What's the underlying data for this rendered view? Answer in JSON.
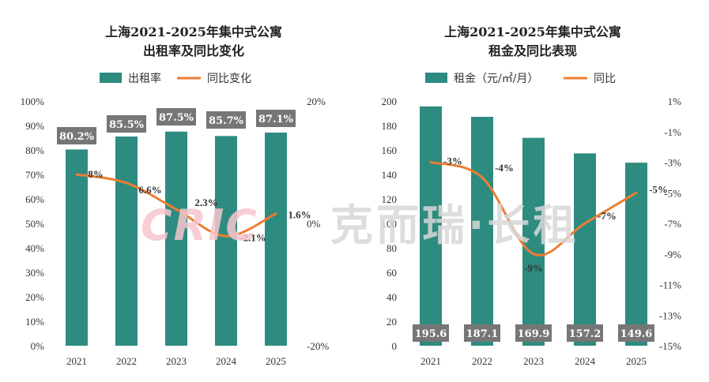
{
  "colors": {
    "bar": "#2e8b80",
    "line": "#ed7d31",
    "badge": "#767676",
    "watermark_logo": "#f6c6cf",
    "watermark_text": "#d8d8d8"
  },
  "watermark": {
    "logo": "CRIC",
    "text": "克而瑞·长租"
  },
  "chart_data": [
    {
      "type": "bar",
      "title_lines": [
        "上海2021-2025年集中式公寓",
        "出租率及同比变化"
      ],
      "categories": [
        "2021",
        "2022",
        "2023",
        "2024",
        "2025"
      ],
      "series": [
        {
          "name": "出租率",
          "kind": "bar",
          "values": [
            80.2,
            85.5,
            87.5,
            85.7,
            87.1
          ],
          "labels": [
            "80.2%",
            "85.5%",
            "87.5%",
            "85.7%",
            "87.1%"
          ]
        },
        {
          "name": "同比变化",
          "kind": "line",
          "axis": "secondary",
          "values": [
            8,
            6.6,
            2.3,
            -2.1,
            1.6
          ],
          "labels": [
            "8%",
            "6.6%",
            "2.3%",
            "-2.1%",
            "1.6%"
          ]
        }
      ],
      "ylim": [
        0,
        100
      ],
      "y_ticks": [
        "0%",
        "10%",
        "20%",
        "30%",
        "40%",
        "50%",
        "60%",
        "70%",
        "80%",
        "90%",
        "100%"
      ],
      "y2lim": [
        -20,
        20
      ],
      "y2_ticks": [
        "-20%",
        "0%",
        "20%"
      ],
      "legend_position": "top"
    },
    {
      "type": "bar",
      "title_lines": [
        "上海2021-2025年集中式公寓",
        "租金及同比表现"
      ],
      "categories": [
        "2021",
        "2022",
        "2023",
        "2024",
        "2025"
      ],
      "series": [
        {
          "name": "租金（元/㎡/月）",
          "kind": "bar",
          "values": [
            195.6,
            187.1,
            169.9,
            157.2,
            149.6
          ],
          "labels": [
            "195.6",
            "187.1",
            "169.9",
            "157.2",
            "149.6"
          ]
        },
        {
          "name": "同比",
          "kind": "line",
          "axis": "secondary",
          "values": [
            -3,
            -4,
            -9,
            -7,
            -5
          ],
          "labels": [
            "-3%",
            "-4%",
            "-9%",
            "-7%",
            "-5%"
          ]
        }
      ],
      "ylim": [
        0,
        200
      ],
      "y_ticks": [
        "0",
        "20",
        "40",
        "60",
        "80",
        "100",
        "120",
        "140",
        "160",
        "180",
        "200"
      ],
      "y2lim": [
        -15,
        1
      ],
      "y2_ticks": [
        "-15%",
        "-13%",
        "-11%",
        "-9%",
        "-7%",
        "-5%",
        "-3%",
        "-1%",
        "1%"
      ],
      "legend_position": "top"
    }
  ]
}
